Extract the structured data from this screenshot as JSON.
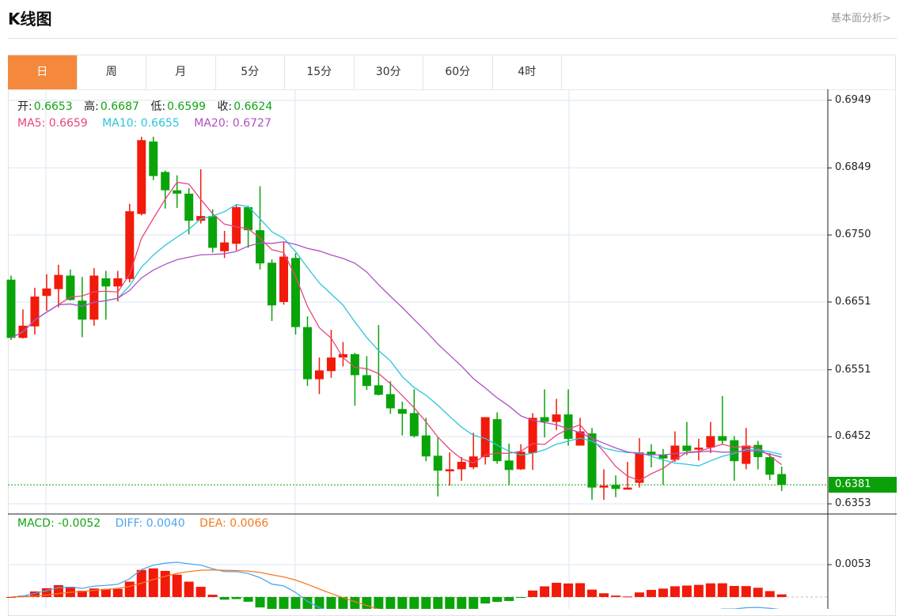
{
  "header": {
    "title": "K线图",
    "link": "基本面分析>"
  },
  "tabs": [
    {
      "label": "日",
      "active": true
    },
    {
      "label": "周"
    },
    {
      "label": "月"
    },
    {
      "label": "5分"
    },
    {
      "label": "15分"
    },
    {
      "label": "30分"
    },
    {
      "label": "60分"
    },
    {
      "label": "4时"
    }
  ],
  "legend": {
    "open_label": "开:",
    "open": "0.6653",
    "high_label": "高:",
    "high": "0.6687",
    "low_label": "低:",
    "low": "0.6599",
    "close_label": "收:",
    "close": "0.6624",
    "ma5": "MA5: 0.6659",
    "ma10": "MA10: 0.6655",
    "ma20": "MA20: 0.6727",
    "macd": "MACD: -0.0052",
    "diff": "DIFF: 0.0040",
    "dea": "DEA: 0.0066"
  },
  "colors": {
    "up": "#f21a0a",
    "down": "#0aa40a",
    "ma5": "#e8467c",
    "ma10": "#2bc4dc",
    "ma20": "#b04fc4",
    "diff": "#4ea6ef",
    "dea": "#f57a20",
    "macd_label": "#12a412",
    "active_tab": "#f4893c",
    "grid": "#e6eef5"
  },
  "chart_data": {
    "type": "candlestick",
    "y_ticks": [
      "0.6949",
      "0.6849",
      "0.6750",
      "0.6651",
      "0.6551",
      "0.6452",
      "0.6353"
    ],
    "y_range": [
      0.6338,
      0.6965
    ],
    "last_price": "0.6381",
    "macd_ticks": [
      "0.0053"
    ],
    "ma_periods": [
      5,
      10,
      20
    ],
    "macd_params": [
      12,
      26,
      9
    ],
    "ohlc_fields": [
      "open",
      "close",
      "low",
      "high"
    ],
    "candles": [
      [
        0.6684,
        0.6598,
        0.6595,
        0.669
      ],
      [
        0.6598,
        0.6616,
        0.6597,
        0.664
      ],
      [
        0.6615,
        0.6659,
        0.6603,
        0.6672
      ],
      [
        0.666,
        0.6671,
        0.6638,
        0.6692
      ],
      [
        0.667,
        0.6691,
        0.6643,
        0.6706
      ],
      [
        0.669,
        0.6654,
        0.6653,
        0.6699
      ],
      [
        0.6653,
        0.6625,
        0.6599,
        0.6688
      ],
      [
        0.6625,
        0.669,
        0.6616,
        0.6701
      ],
      [
        0.6686,
        0.6674,
        0.6625,
        0.6697
      ],
      [
        0.6674,
        0.6686,
        0.6652,
        0.6697
      ],
      [
        0.6685,
        0.6785,
        0.668,
        0.6796
      ],
      [
        0.6781,
        0.689,
        0.6779,
        0.6895
      ],
      [
        0.6888,
        0.6837,
        0.6831,
        0.6895
      ],
      [
        0.6843,
        0.6816,
        0.6789,
        0.6845
      ],
      [
        0.6816,
        0.6811,
        0.679,
        0.6838
      ],
      [
        0.6811,
        0.6771,
        0.6751,
        0.6819
      ],
      [
        0.6771,
        0.6778,
        0.6767,
        0.6847
      ],
      [
        0.6778,
        0.6731,
        0.6724,
        0.6788
      ],
      [
        0.6726,
        0.6739,
        0.6716,
        0.6756
      ],
      [
        0.6737,
        0.6791,
        0.6727,
        0.6795
      ],
      [
        0.6791,
        0.6757,
        0.6731,
        0.6793
      ],
      [
        0.6757,
        0.6708,
        0.6699,
        0.6822
      ],
      [
        0.6709,
        0.6646,
        0.6623,
        0.6714
      ],
      [
        0.6651,
        0.6718,
        0.6647,
        0.674
      ],
      [
        0.6716,
        0.6614,
        0.6603,
        0.6723
      ],
      [
        0.6614,
        0.6537,
        0.6527,
        0.663
      ],
      [
        0.6537,
        0.655,
        0.6515,
        0.6569
      ],
      [
        0.6549,
        0.6569,
        0.6539,
        0.661
      ],
      [
        0.6569,
        0.6574,
        0.6556,
        0.6592
      ],
      [
        0.6574,
        0.6543,
        0.6498,
        0.6576
      ],
      [
        0.6543,
        0.6527,
        0.6521,
        0.6571
      ],
      [
        0.6528,
        0.6514,
        0.6513,
        0.6617
      ],
      [
        0.6515,
        0.6494,
        0.6486,
        0.6534
      ],
      [
        0.6493,
        0.6486,
        0.6454,
        0.6504
      ],
      [
        0.6487,
        0.6453,
        0.6451,
        0.6522
      ],
      [
        0.6454,
        0.6423,
        0.6416,
        0.648
      ],
      [
        0.6424,
        0.6402,
        0.6364,
        0.6451
      ],
      [
        0.6401,
        0.6404,
        0.638,
        0.6429
      ],
      [
        0.6404,
        0.6415,
        0.6387,
        0.6422
      ],
      [
        0.6407,
        0.6423,
        0.6404,
        0.6458
      ],
      [
        0.6422,
        0.6481,
        0.6411,
        0.6481
      ],
      [
        0.6478,
        0.6416,
        0.6412,
        0.6488
      ],
      [
        0.6417,
        0.6403,
        0.6381,
        0.6442
      ],
      [
        0.6404,
        0.643,
        0.6403,
        0.6441
      ],
      [
        0.6428,
        0.648,
        0.6403,
        0.6487
      ],
      [
        0.6481,
        0.6474,
        0.6451,
        0.6522
      ],
      [
        0.6474,
        0.6485,
        0.6462,
        0.6508
      ],
      [
        0.6485,
        0.6449,
        0.6439,
        0.6522
      ],
      [
        0.6439,
        0.646,
        0.6439,
        0.648
      ],
      [
        0.6457,
        0.6377,
        0.6359,
        0.6465
      ],
      [
        0.6377,
        0.638,
        0.6359,
        0.6404
      ],
      [
        0.6381,
        0.6375,
        0.6363,
        0.6395
      ],
      [
        0.6374,
        0.6377,
        0.6374,
        0.6415
      ],
      [
        0.6384,
        0.6429,
        0.6377,
        0.645
      ],
      [
        0.643,
        0.6426,
        0.6407,
        0.6441
      ],
      [
        0.6425,
        0.642,
        0.6381,
        0.6434
      ],
      [
        0.6418,
        0.6439,
        0.6415,
        0.646
      ],
      [
        0.6439,
        0.6431,
        0.6425,
        0.6474
      ],
      [
        0.6433,
        0.6436,
        0.6417,
        0.6449
      ],
      [
        0.6436,
        0.6453,
        0.6428,
        0.6474
      ],
      [
        0.6453,
        0.6446,
        0.644,
        0.6512
      ],
      [
        0.6447,
        0.6416,
        0.6387,
        0.6453
      ],
      [
        0.6412,
        0.6439,
        0.6404,
        0.6465
      ],
      [
        0.644,
        0.6422,
        0.6404,
        0.6446
      ],
      [
        0.6422,
        0.6396,
        0.6388,
        0.6428
      ],
      [
        0.6397,
        0.6381,
        0.6372,
        0.6408
      ]
    ]
  }
}
